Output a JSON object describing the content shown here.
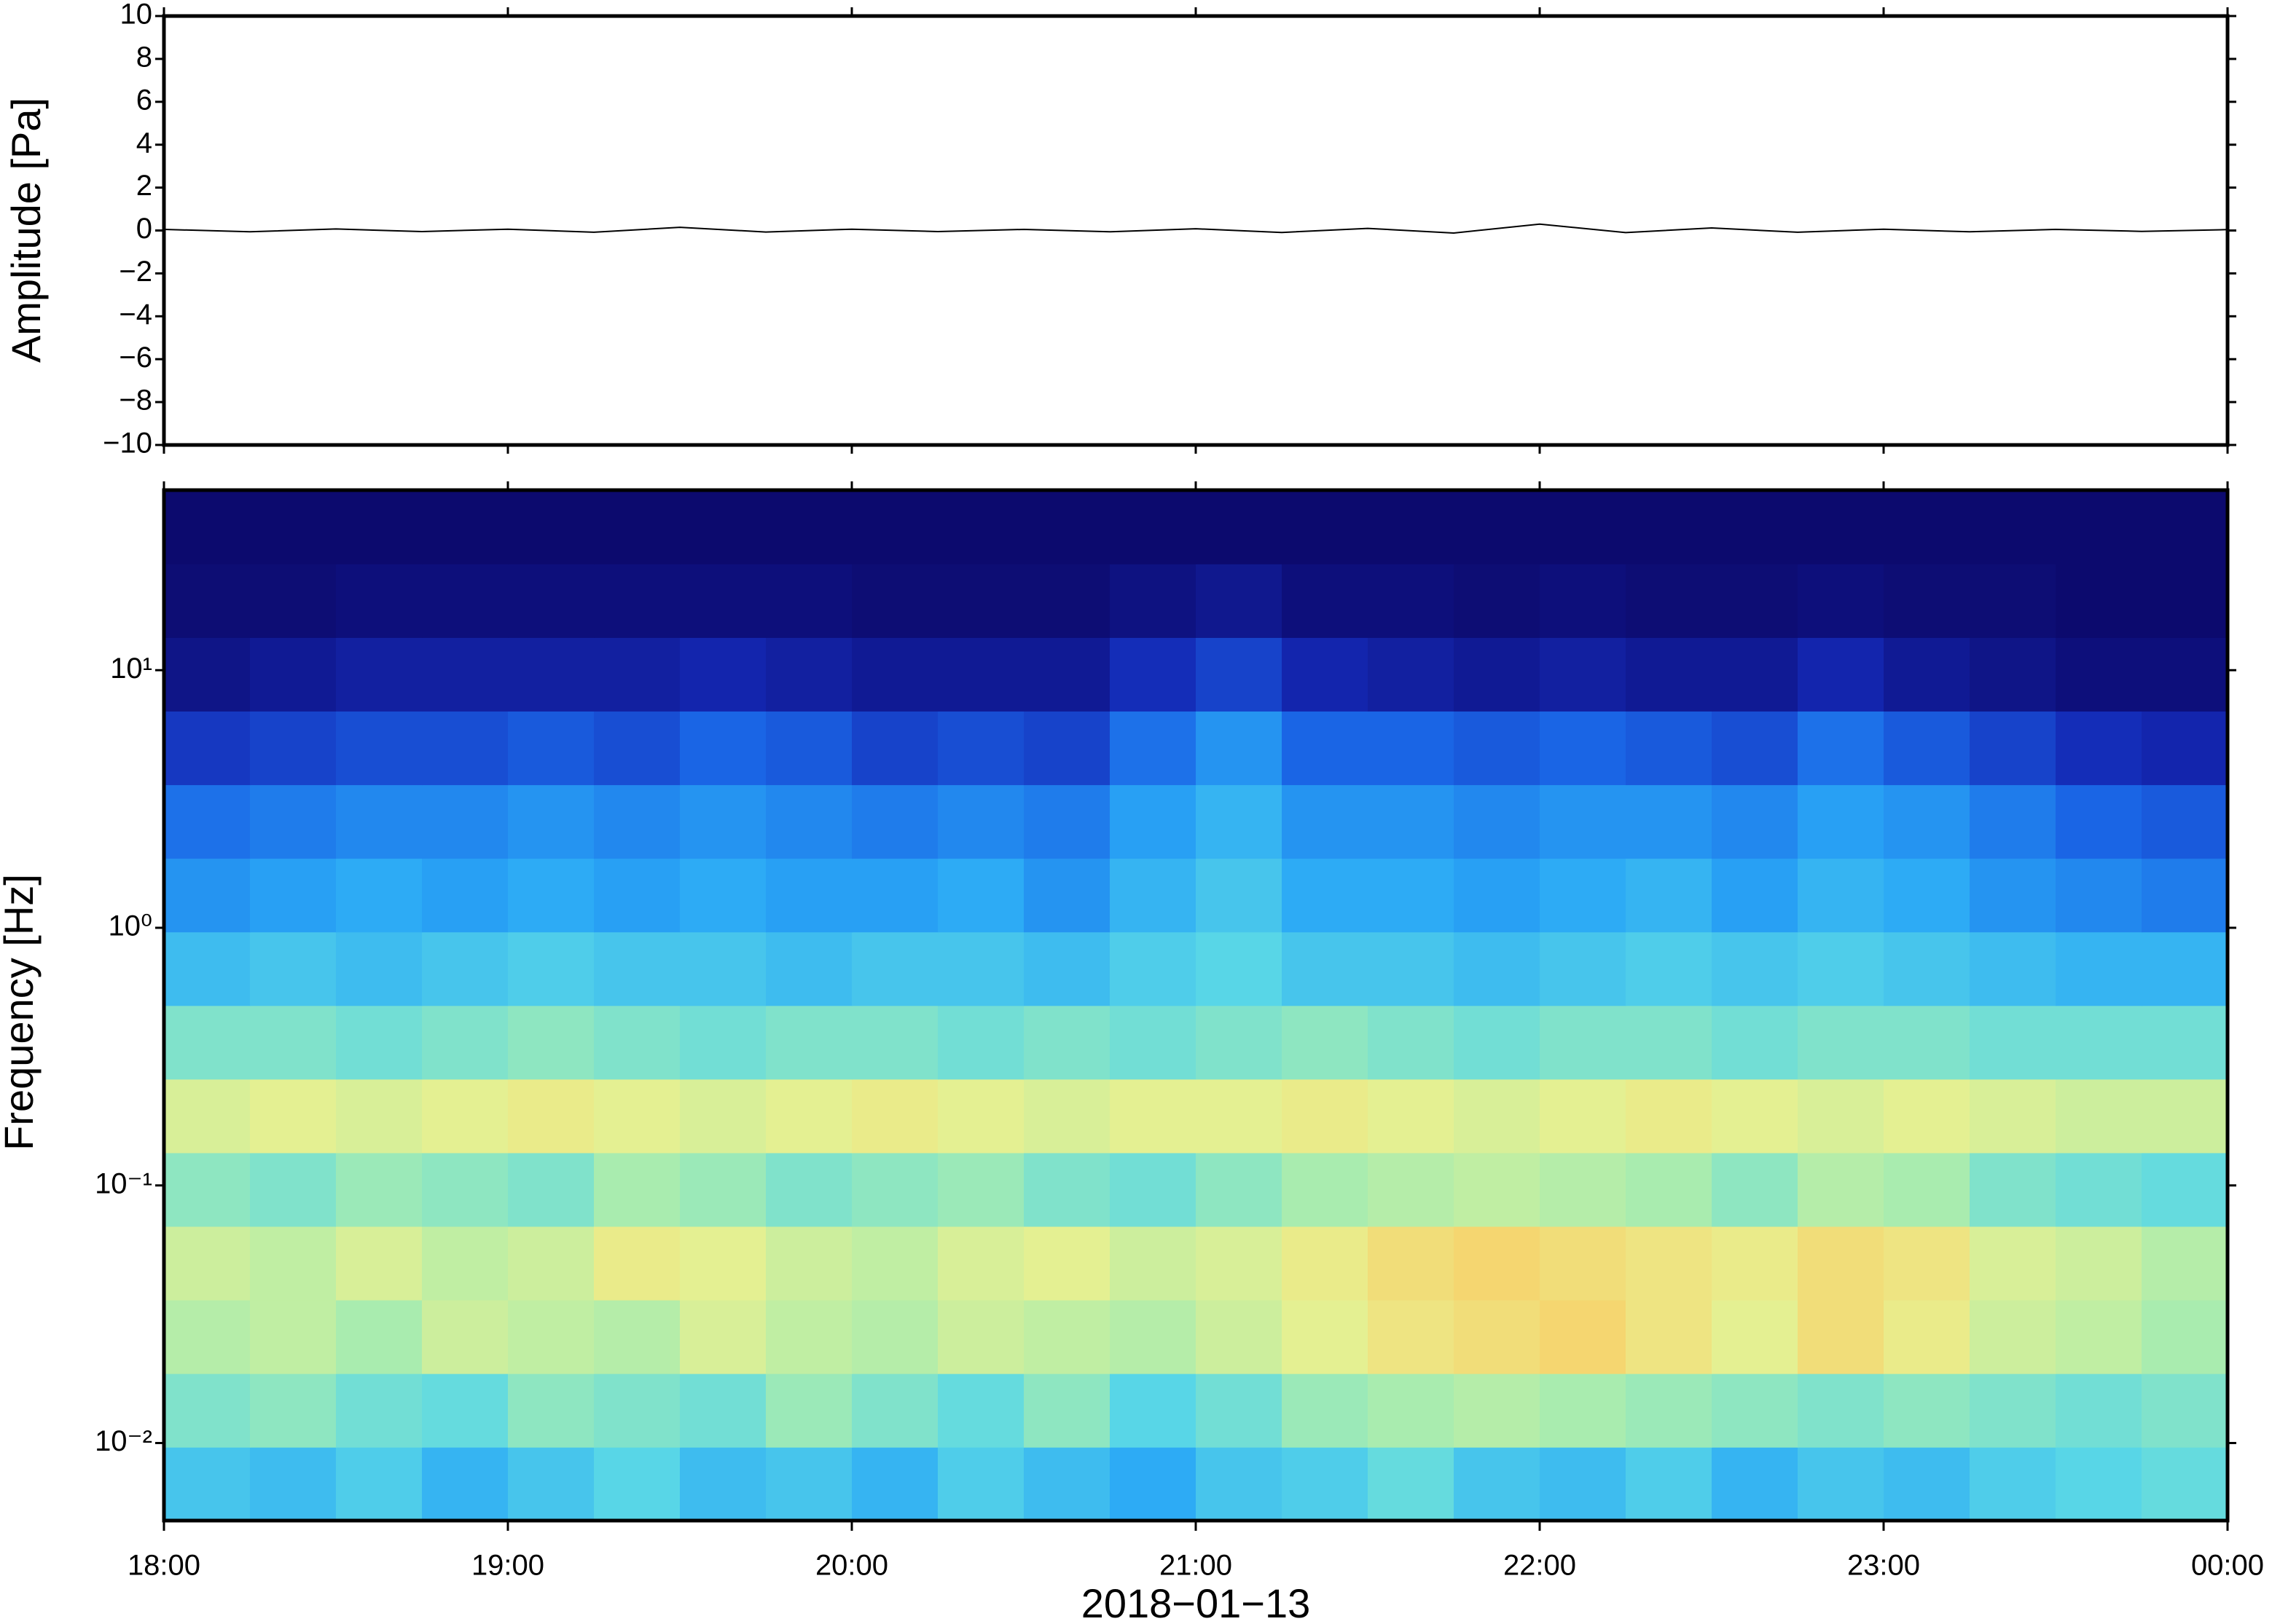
{
  "chart_data": [
    {
      "type": "line",
      "ylabel": "Amplitude [Pa]",
      "color": "#000000",
      "xlim": [
        18,
        24
      ],
      "ylim": [
        -10,
        10
      ],
      "yticks": [
        {
          "value": -10,
          "label": "−10"
        },
        {
          "value": -8,
          "label": "−8"
        },
        {
          "value": -6,
          "label": "−6"
        },
        {
          "value": -4,
          "label": "−4"
        },
        {
          "value": -2,
          "label": "−2"
        },
        0,
        2,
        4,
        6,
        8,
        10
      ],
      "x": [
        18,
        18.25,
        18.5,
        18.75,
        19,
        19.25,
        19.5,
        19.75,
        20,
        20.25,
        20.5,
        20.75,
        21,
        21.25,
        21.5,
        21.75,
        22,
        22.25,
        22.5,
        22.75,
        23,
        23.25,
        23.5,
        23.75,
        24
      ],
      "values": [
        0.05,
        -0.06,
        0.07,
        -0.05,
        0.06,
        -0.08,
        0.15,
        -0.07,
        0.06,
        -0.05,
        0.05,
        -0.06,
        0.08,
        -0.09,
        0.1,
        -0.12,
        0.3,
        -0.1,
        0.12,
        -0.08,
        0.06,
        -0.06,
        0.05,
        -0.04,
        0.04
      ]
    },
    {
      "type": "heatmap",
      "ylabel": "Frequency [Hz]",
      "xlabel": "2018−01−13",
      "ylog": true,
      "xlim": [
        18,
        24
      ],
      "ylim": [
        0.005,
        50
      ],
      "xticks": [
        {
          "value": 18,
          "label": "18:00"
        },
        {
          "value": 19,
          "label": "19:00"
        },
        {
          "value": 20,
          "label": "20:00"
        },
        {
          "value": 21,
          "label": "21:00"
        },
        {
          "value": 22,
          "label": "22:00"
        },
        {
          "value": 23,
          "label": "23:00"
        },
        {
          "value": 24,
          "label": "00:00"
        }
      ],
      "yticks": [
        {
          "value": 0.01,
          "label": "10⁻²"
        },
        {
          "value": 0.1,
          "label": "10⁻¹"
        },
        {
          "value": 1,
          "label": "10⁰"
        },
        {
          "value": 10,
          "label": "10¹"
        }
      ],
      "colormap": [
        "#0c0a6e",
        "#1428b4",
        "#1a66e6",
        "#2aa8f6",
        "#5ad8e6",
        "#a6ecb0",
        "#e8f090",
        "#fbc860",
        "#f48840",
        "#d8342a"
      ],
      "z": [
        [
          0.4,
          0.38,
          0.42,
          0.36,
          0.4,
          0.44,
          0.38,
          0.4,
          0.36,
          0.42,
          0.38,
          0.34,
          0.4,
          0.42,
          0.46,
          0.4,
          0.38,
          0.42,
          0.36,
          0.4,
          0.38,
          0.42,
          0.44,
          0.46
        ],
        [
          0.5,
          0.52,
          0.48,
          0.46,
          0.52,
          0.5,
          0.48,
          0.54,
          0.5,
          0.46,
          0.52,
          0.44,
          0.48,
          0.54,
          0.56,
          0.58,
          0.56,
          0.54,
          0.52,
          0.5,
          0.52,
          0.5,
          0.48,
          0.5
        ],
        [
          0.58,
          0.6,
          0.56,
          0.62,
          0.6,
          0.58,
          0.64,
          0.6,
          0.58,
          0.62,
          0.6,
          0.58,
          0.62,
          0.66,
          0.7,
          0.72,
          0.74,
          0.7,
          0.66,
          0.72,
          0.68,
          0.62,
          0.6,
          0.56
        ],
        [
          0.62,
          0.6,
          0.64,
          0.6,
          0.62,
          0.68,
          0.66,
          0.62,
          0.6,
          0.64,
          0.66,
          0.62,
          0.64,
          0.68,
          0.72,
          0.74,
          0.72,
          0.7,
          0.68,
          0.72,
          0.7,
          0.64,
          0.62,
          0.58
        ],
        [
          0.52,
          0.5,
          0.54,
          0.52,
          0.5,
          0.56,
          0.54,
          0.5,
          0.52,
          0.54,
          0.5,
          0.48,
          0.52,
          0.56,
          0.58,
          0.6,
          0.58,
          0.56,
          0.52,
          0.58,
          0.56,
          0.5,
          0.48,
          0.46
        ],
        [
          0.64,
          0.66,
          0.64,
          0.66,
          0.68,
          0.66,
          0.64,
          0.66,
          0.68,
          0.66,
          0.64,
          0.66,
          0.66,
          0.68,
          0.66,
          0.64,
          0.66,
          0.68,
          0.66,
          0.64,
          0.66,
          0.64,
          0.62,
          0.62
        ],
        [
          0.5,
          0.5,
          0.48,
          0.5,
          0.52,
          0.5,
          0.48,
          0.5,
          0.5,
          0.48,
          0.5,
          0.48,
          0.5,
          0.52,
          0.5,
          0.48,
          0.5,
          0.5,
          0.48,
          0.5,
          0.5,
          0.48,
          0.48,
          0.48
        ],
        [
          0.38,
          0.4,
          0.38,
          0.4,
          0.42,
          0.4,
          0.4,
          0.38,
          0.4,
          0.4,
          0.38,
          0.42,
          0.44,
          0.4,
          0.4,
          0.38,
          0.4,
          0.42,
          0.4,
          0.42,
          0.4,
          0.38,
          0.36,
          0.36
        ],
        [
          0.3,
          0.32,
          0.34,
          0.32,
          0.34,
          0.32,
          0.34,
          0.32,
          0.32,
          0.34,
          0.3,
          0.36,
          0.4,
          0.34,
          0.34,
          0.32,
          0.34,
          0.36,
          0.32,
          0.36,
          0.34,
          0.3,
          0.28,
          0.26
        ],
        [
          0.24,
          0.26,
          0.28,
          0.28,
          0.3,
          0.28,
          0.3,
          0.28,
          0.26,
          0.28,
          0.26,
          0.32,
          0.36,
          0.3,
          0.3,
          0.28,
          0.3,
          0.3,
          0.28,
          0.32,
          0.3,
          0.26,
          0.22,
          0.2
        ],
        [
          0.14,
          0.16,
          0.18,
          0.18,
          0.2,
          0.18,
          0.22,
          0.2,
          0.16,
          0.18,
          0.16,
          0.24,
          0.3,
          0.22,
          0.22,
          0.2,
          0.22,
          0.2,
          0.18,
          0.24,
          0.2,
          0.16,
          0.12,
          0.1
        ],
        [
          0.04,
          0.06,
          0.08,
          0.08,
          0.08,
          0.08,
          0.1,
          0.08,
          0.06,
          0.06,
          0.06,
          0.12,
          0.16,
          0.1,
          0.08,
          0.06,
          0.08,
          0.06,
          0.06,
          0.1,
          0.06,
          0.04,
          0.02,
          0.02
        ],
        [
          0.01,
          0.01,
          0.02,
          0.02,
          0.02,
          0.02,
          0.02,
          0.02,
          0.01,
          0.01,
          0.01,
          0.03,
          0.05,
          0.02,
          0.02,
          0.01,
          0.02,
          0.01,
          0.01,
          0.02,
          0.01,
          0.01,
          0,
          0
        ],
        [
          0,
          0,
          0,
          0,
          0,
          0,
          0,
          0,
          0,
          0,
          0,
          0,
          0,
          0,
          0,
          0,
          0,
          0,
          0,
          0,
          0,
          0,
          0,
          0
        ]
      ]
    }
  ]
}
